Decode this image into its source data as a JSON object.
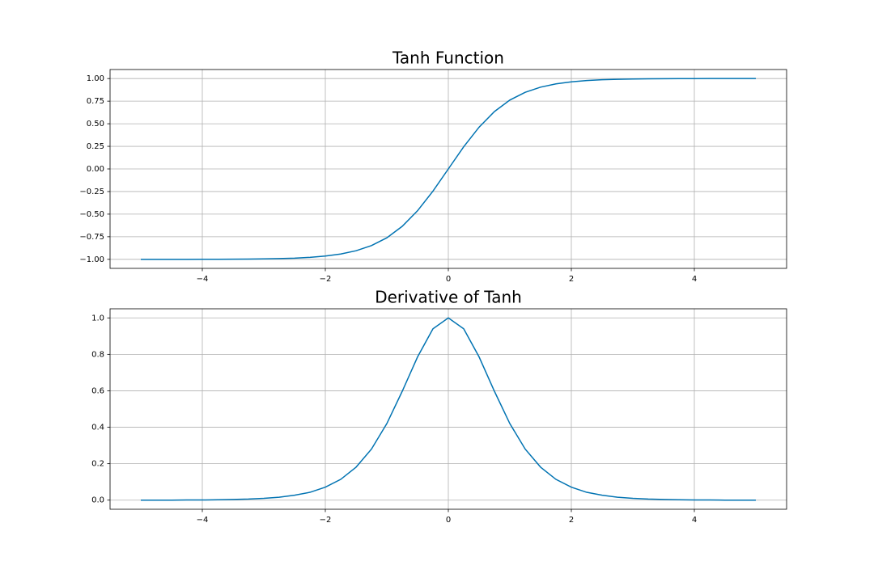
{
  "chart_data": [
    {
      "type": "line",
      "title": "Tanh Function",
      "grid": true,
      "x": [
        -5,
        -4.75,
        -4.5,
        -4.25,
        -4,
        -3.75,
        -3.5,
        -3.25,
        -3,
        -2.75,
        -2.5,
        -2.25,
        -2,
        -1.75,
        -1.5,
        -1.25,
        -1,
        -0.75,
        -0.5,
        -0.25,
        0,
        0.25,
        0.5,
        0.75,
        1,
        1.25,
        1.5,
        1.75,
        2,
        2.25,
        2.5,
        2.75,
        3,
        3.25,
        3.5,
        3.75,
        4,
        4.25,
        4.5,
        4.75,
        5
      ],
      "series": [
        {
          "color": "#0173b2",
          "values": [
            -1.0,
            -1.0,
            -1.0,
            -1.0,
            -0.999,
            -0.999,
            -0.998,
            -0.997,
            -0.995,
            -0.992,
            -0.987,
            -0.978,
            -0.964,
            -0.941,
            -0.905,
            -0.848,
            -0.762,
            -0.635,
            -0.462,
            -0.245,
            0,
            0.245,
            0.462,
            0.635,
            0.762,
            0.848,
            0.905,
            0.941,
            0.964,
            0.978,
            0.987,
            0.992,
            0.995,
            0.997,
            0.998,
            0.999,
            0.999,
            1.0,
            1.0,
            1.0,
            1.0
          ]
        }
      ],
      "xlim": [
        -5.5,
        5.5
      ],
      "xticks": [
        {
          "value": -4,
          "label": "−4"
        },
        {
          "value": -2,
          "label": "−2"
        },
        0,
        2,
        4
      ],
      "ylim": [
        -1.1,
        1.1
      ],
      "yticks": [
        {
          "value": -1,
          "label": "−1.00"
        },
        {
          "value": -0.75,
          "label": "−0.75"
        },
        {
          "value": -0.5,
          "label": "−0.50"
        },
        {
          "value": -0.25,
          "label": "−0.25"
        },
        {
          "value": 0,
          "label": "0.00"
        },
        0.25,
        {
          "value": 0.5,
          "label": "0.50"
        },
        0.75,
        {
          "value": 1,
          "label": "1.00"
        }
      ]
    },
    {
      "type": "line",
      "title": "Derivative of Tanh",
      "grid": true,
      "x": [
        -5,
        -4.75,
        -4.5,
        -4.25,
        -4,
        -3.75,
        -3.5,
        -3.25,
        -3,
        -2.75,
        -2.5,
        -2.25,
        -2,
        -1.75,
        -1.5,
        -1.25,
        -1,
        -0.75,
        -0.5,
        -0.25,
        0,
        0.25,
        0.5,
        0.75,
        1,
        1.25,
        1.5,
        1.75,
        2,
        2.25,
        2.5,
        2.75,
        3,
        3.25,
        3.5,
        3.75,
        4,
        4.25,
        4.5,
        4.75,
        5
      ],
      "series": [
        {
          "color": "#0173b2",
          "values": [
            0.0,
            0.0,
            0.0,
            0.001,
            0.001,
            0.002,
            0.004,
            0.006,
            0.01,
            0.016,
            0.027,
            0.043,
            0.071,
            0.114,
            0.181,
            0.28,
            0.42,
            0.597,
            0.786,
            0.94,
            1,
            0.94,
            0.786,
            0.597,
            0.42,
            0.28,
            0.181,
            0.114,
            0.071,
            0.043,
            0.027,
            0.016,
            0.01,
            0.006,
            0.004,
            0.002,
            0.001,
            0.001,
            0.0,
            0.0,
            0.0
          ]
        }
      ],
      "xlim": [
        -5.5,
        5.5
      ],
      "xticks": [
        {
          "value": -4,
          "label": "−4"
        },
        {
          "value": -2,
          "label": "−2"
        },
        0,
        2,
        4
      ],
      "ylim": [
        -0.05,
        1.05
      ],
      "yticks": [
        {
          "value": 0,
          "label": "0.0"
        },
        0.2,
        0.4,
        0.6,
        0.8,
        {
          "value": 1,
          "label": "1.0"
        }
      ]
    }
  ]
}
